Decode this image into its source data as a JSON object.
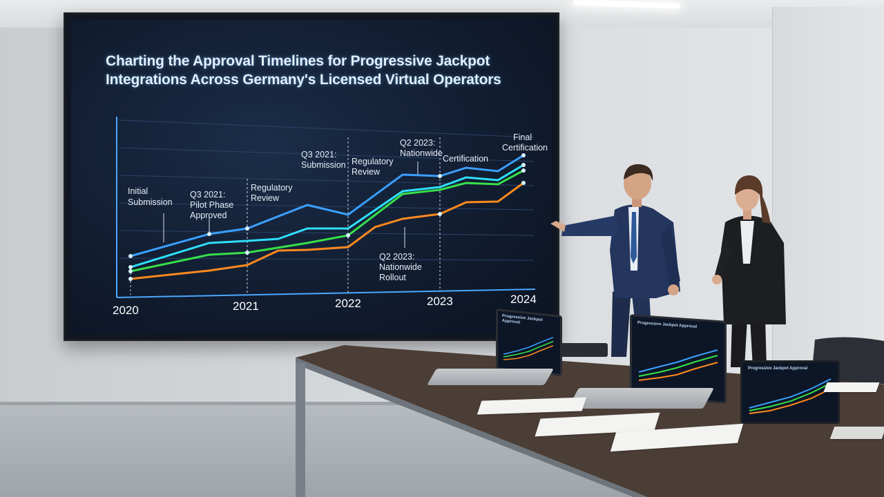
{
  "screen": {
    "title": "Charting the Approval Timelines for Progressive Jackpot Integrations Across Germany's Licensed Virtual Operators",
    "years": [
      "2020",
      "2021",
      "2022",
      "2023",
      "2024"
    ],
    "annotations": {
      "a1": "Initial Submission",
      "a2": "Q3 2021: Pilot Phase Approved",
      "a3": "Regulatory Review",
      "a4": "Q3 2021: Submission",
      "a5": "Regulatory Review",
      "a6": "Q2 2023: Nationwide",
      "a7": "Certification",
      "a8": "Final Certification",
      "a9": "Q2 2023: Nationwide Rollout"
    },
    "series_colors": [
      "#3aa0ff",
      "#2fe0ff",
      "#37e04a",
      "#ff8a1e"
    ]
  },
  "devices": {
    "laptop_left_title": "Progressive Jackpot Approval",
    "laptop_center_title": "Progressive Jackpot Approval",
    "tablet_title": "Progressive Jackpot Approval"
  }
}
